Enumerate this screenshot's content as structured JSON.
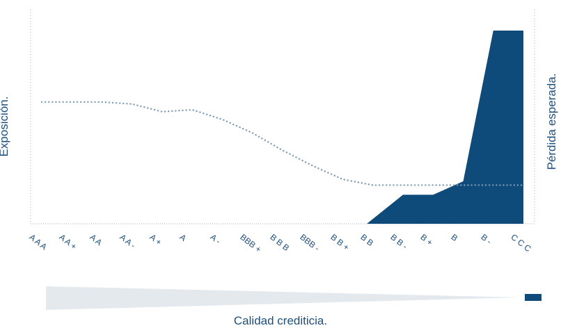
{
  "chart_data": {
    "type": "area",
    "title": "",
    "xlabel": "Calidad crediticia.",
    "ylabel_left": "Exposición.",
    "ylabel_right": "Pérdida esperada.",
    "ylim": [
      0,
      100
    ],
    "grid": false,
    "categories": [
      "AAA",
      "AA+",
      "AA",
      "AA-",
      "A+",
      "A",
      "A-",
      "BBB+",
      "BBB",
      "BBB-",
      "BB+",
      "BB",
      "BB-",
      "B+",
      "B",
      "B-",
      "CCC"
    ],
    "tick_labels": [
      "A A A",
      "A A +",
      "A A",
      "A A -",
      "A +",
      "A",
      "A -",
      "BBB +",
      "B B B",
      "BBB -",
      "B B +",
      "B B",
      "B B -",
      "B +",
      "B",
      "B -",
      "C C C"
    ],
    "series": [
      {
        "style": "dotted",
        "color": "#7f9db5",
        "x": [
          0,
          1,
          2,
          3,
          4,
          5,
          6,
          7,
          8,
          9,
          10,
          11,
          12,
          13,
          14,
          15,
          16
        ],
        "values": [
          63,
          63,
          63,
          62,
          58,
          59,
          54,
          47,
          38,
          30,
          23,
          20,
          20,
          20,
          20,
          20,
          20
        ]
      },
      {
        "style": "filled-area",
        "color": "#0e4a7a",
        "x": [
          0,
          1,
          2,
          3,
          4,
          5,
          6,
          7,
          8,
          9,
          10,
          10.8,
          11,
          12,
          13,
          14,
          15,
          16
        ],
        "values": [
          0,
          0,
          0,
          0,
          0,
          0,
          0,
          0,
          0,
          0,
          0,
          0,
          2.5,
          15,
          15,
          22,
          100,
          100
        ]
      }
    ],
    "quality_bar": {
      "left_color": "#e4e9ee",
      "right_color": "#0e4a7a"
    }
  }
}
